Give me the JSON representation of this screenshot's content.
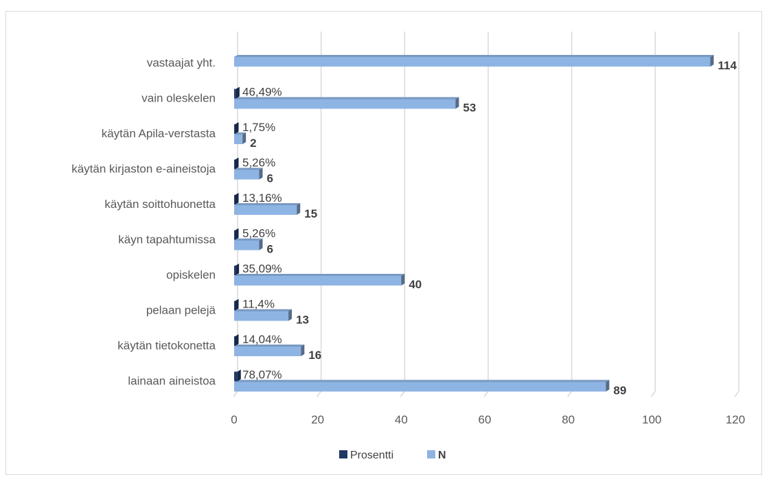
{
  "chart_data": {
    "type": "bar",
    "orientation": "horizontal",
    "categories": [
      "vastaajat yht.",
      "vain oleskelen",
      "käytän Apila-verstasta",
      "käytän kirjaston e-aineistoja",
      "käytän soittohuonetta",
      "käyn tapahtumissa",
      "opiskelen",
      "pelaan pelejä",
      "käytän tietokonetta",
      "lainaan aineistoa"
    ],
    "series": [
      {
        "name": "Prosentti",
        "color": "#1f3864",
        "values": [
          null,
          0.4649,
          0.0175,
          0.0526,
          0.1316,
          0.0526,
          0.3509,
          0.114,
          0.1404,
          0.7807
        ],
        "labels": [
          "",
          "46,49%",
          "1,75%",
          "5,26%",
          "13,16%",
          "5,26%",
          "35,09%",
          "11,4%",
          "14,04%",
          "78,07%"
        ]
      },
      {
        "name": "N",
        "color": "#8eb4e3",
        "values": [
          114,
          53,
          2,
          6,
          15,
          6,
          40,
          13,
          16,
          89
        ],
        "labels": [
          "114",
          "53",
          "2",
          "6",
          "15",
          "6",
          "40",
          "13",
          "16",
          "89"
        ]
      }
    ],
    "xlim": [
      0,
      120
    ],
    "xticks": [
      "0",
      "20",
      "40",
      "60",
      "80",
      "100",
      "120"
    ],
    "grid": true,
    "legend_position": "bottom"
  }
}
